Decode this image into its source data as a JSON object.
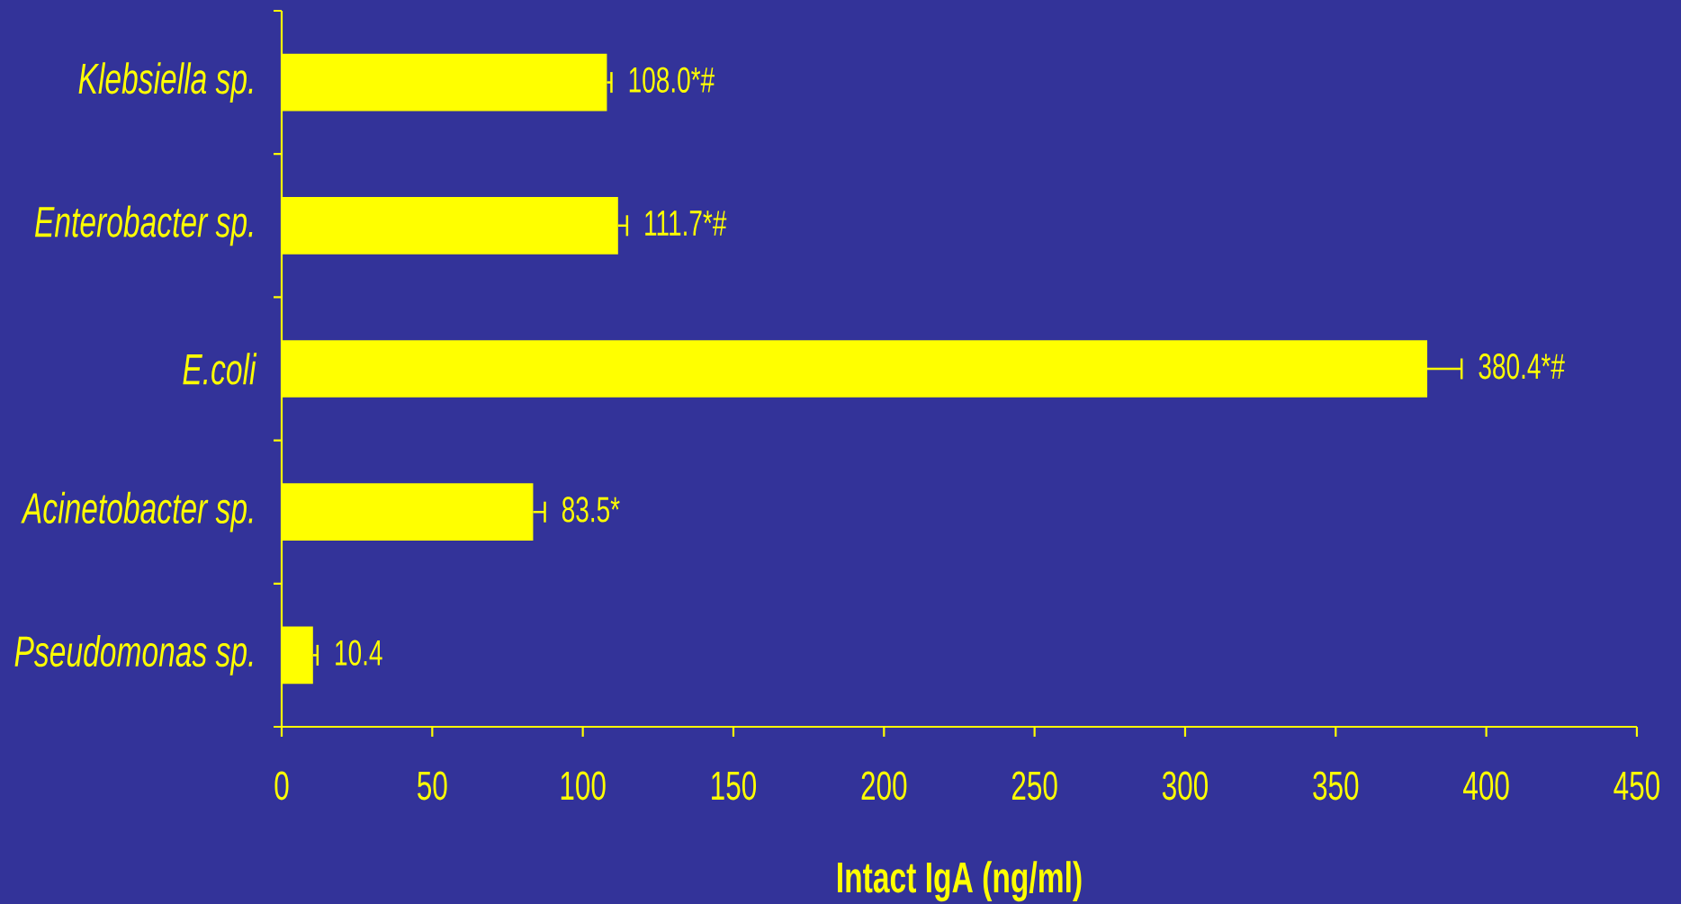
{
  "chart_data": {
    "type": "bar",
    "orientation": "horizontal",
    "categories": [
      "Klebsiella sp.",
      "Enterobacter sp.",
      "E.coli",
      "Acinetobacter sp.",
      "Pseudomonas sp."
    ],
    "values": [
      108.0,
      111.7,
      380.4,
      83.5,
      10.4
    ],
    "errors": [
      [
        108.0,
        109.5
      ],
      [
        111.7,
        114.7
      ],
      [
        380.4,
        391.8
      ],
      [
        83.5,
        87.4
      ],
      [
        10.4,
        11.9
      ]
    ],
    "value_labels": [
      "108.0*#",
      "111.7*#",
      "380.4*#",
      "83.5*",
      "10.4"
    ],
    "color": "#ffff00",
    "xlabel": "Intact IgA (ng/ml)",
    "xlim": [
      0,
      450
    ],
    "xticks": [
      0,
      50,
      100,
      150,
      200,
      250,
      300,
      350,
      400,
      450
    ]
  }
}
